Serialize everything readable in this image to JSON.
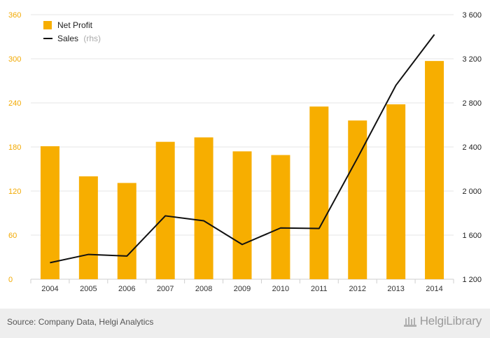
{
  "chart_data": {
    "type": "bar",
    "categories": [
      "2004",
      "2005",
      "2006",
      "2007",
      "2008",
      "2009",
      "2010",
      "2011",
      "2012",
      "2013",
      "2014"
    ],
    "series": [
      {
        "name": "Net Profit",
        "type": "bar",
        "axis": "left",
        "color": "#f7ae00",
        "values": [
          181,
          140,
          131,
          187,
          193,
          174,
          169,
          235,
          216,
          238,
          297
        ]
      },
      {
        "name": "Sales",
        "name_suffix": "(rhs)",
        "type": "line",
        "axis": "right",
        "color": "#111111",
        "values": [
          1350,
          1425,
          1410,
          1775,
          1730,
          1515,
          1665,
          1660,
          2300,
          2960,
          3420
        ]
      }
    ],
    "y_left": {
      "min": 0,
      "max": 360,
      "ticks": [
        0,
        60,
        120,
        180,
        240,
        300,
        360
      ],
      "labels": [
        "0",
        "60",
        "120",
        "180",
        "240",
        "300",
        "360"
      ],
      "color": "#f2a900"
    },
    "y_right": {
      "min": 1200,
      "max": 3600,
      "ticks": [
        1200,
        1600,
        2000,
        2400,
        2800,
        3200,
        3600
      ],
      "labels": [
        "1 200",
        "1 600",
        "2 000",
        "2 400",
        "2 800",
        "3 200",
        "3 600"
      ]
    },
    "legend": {
      "position": "top-left",
      "items": [
        "Net Profit",
        "Sales"
      ],
      "sales_suffix": "(rhs)"
    },
    "grid": true,
    "title": "",
    "xlabel": "",
    "ylabel": ""
  },
  "footer": {
    "source": "Source: Company Data, Helgi Analytics",
    "brand": "HelgiLibrary"
  }
}
